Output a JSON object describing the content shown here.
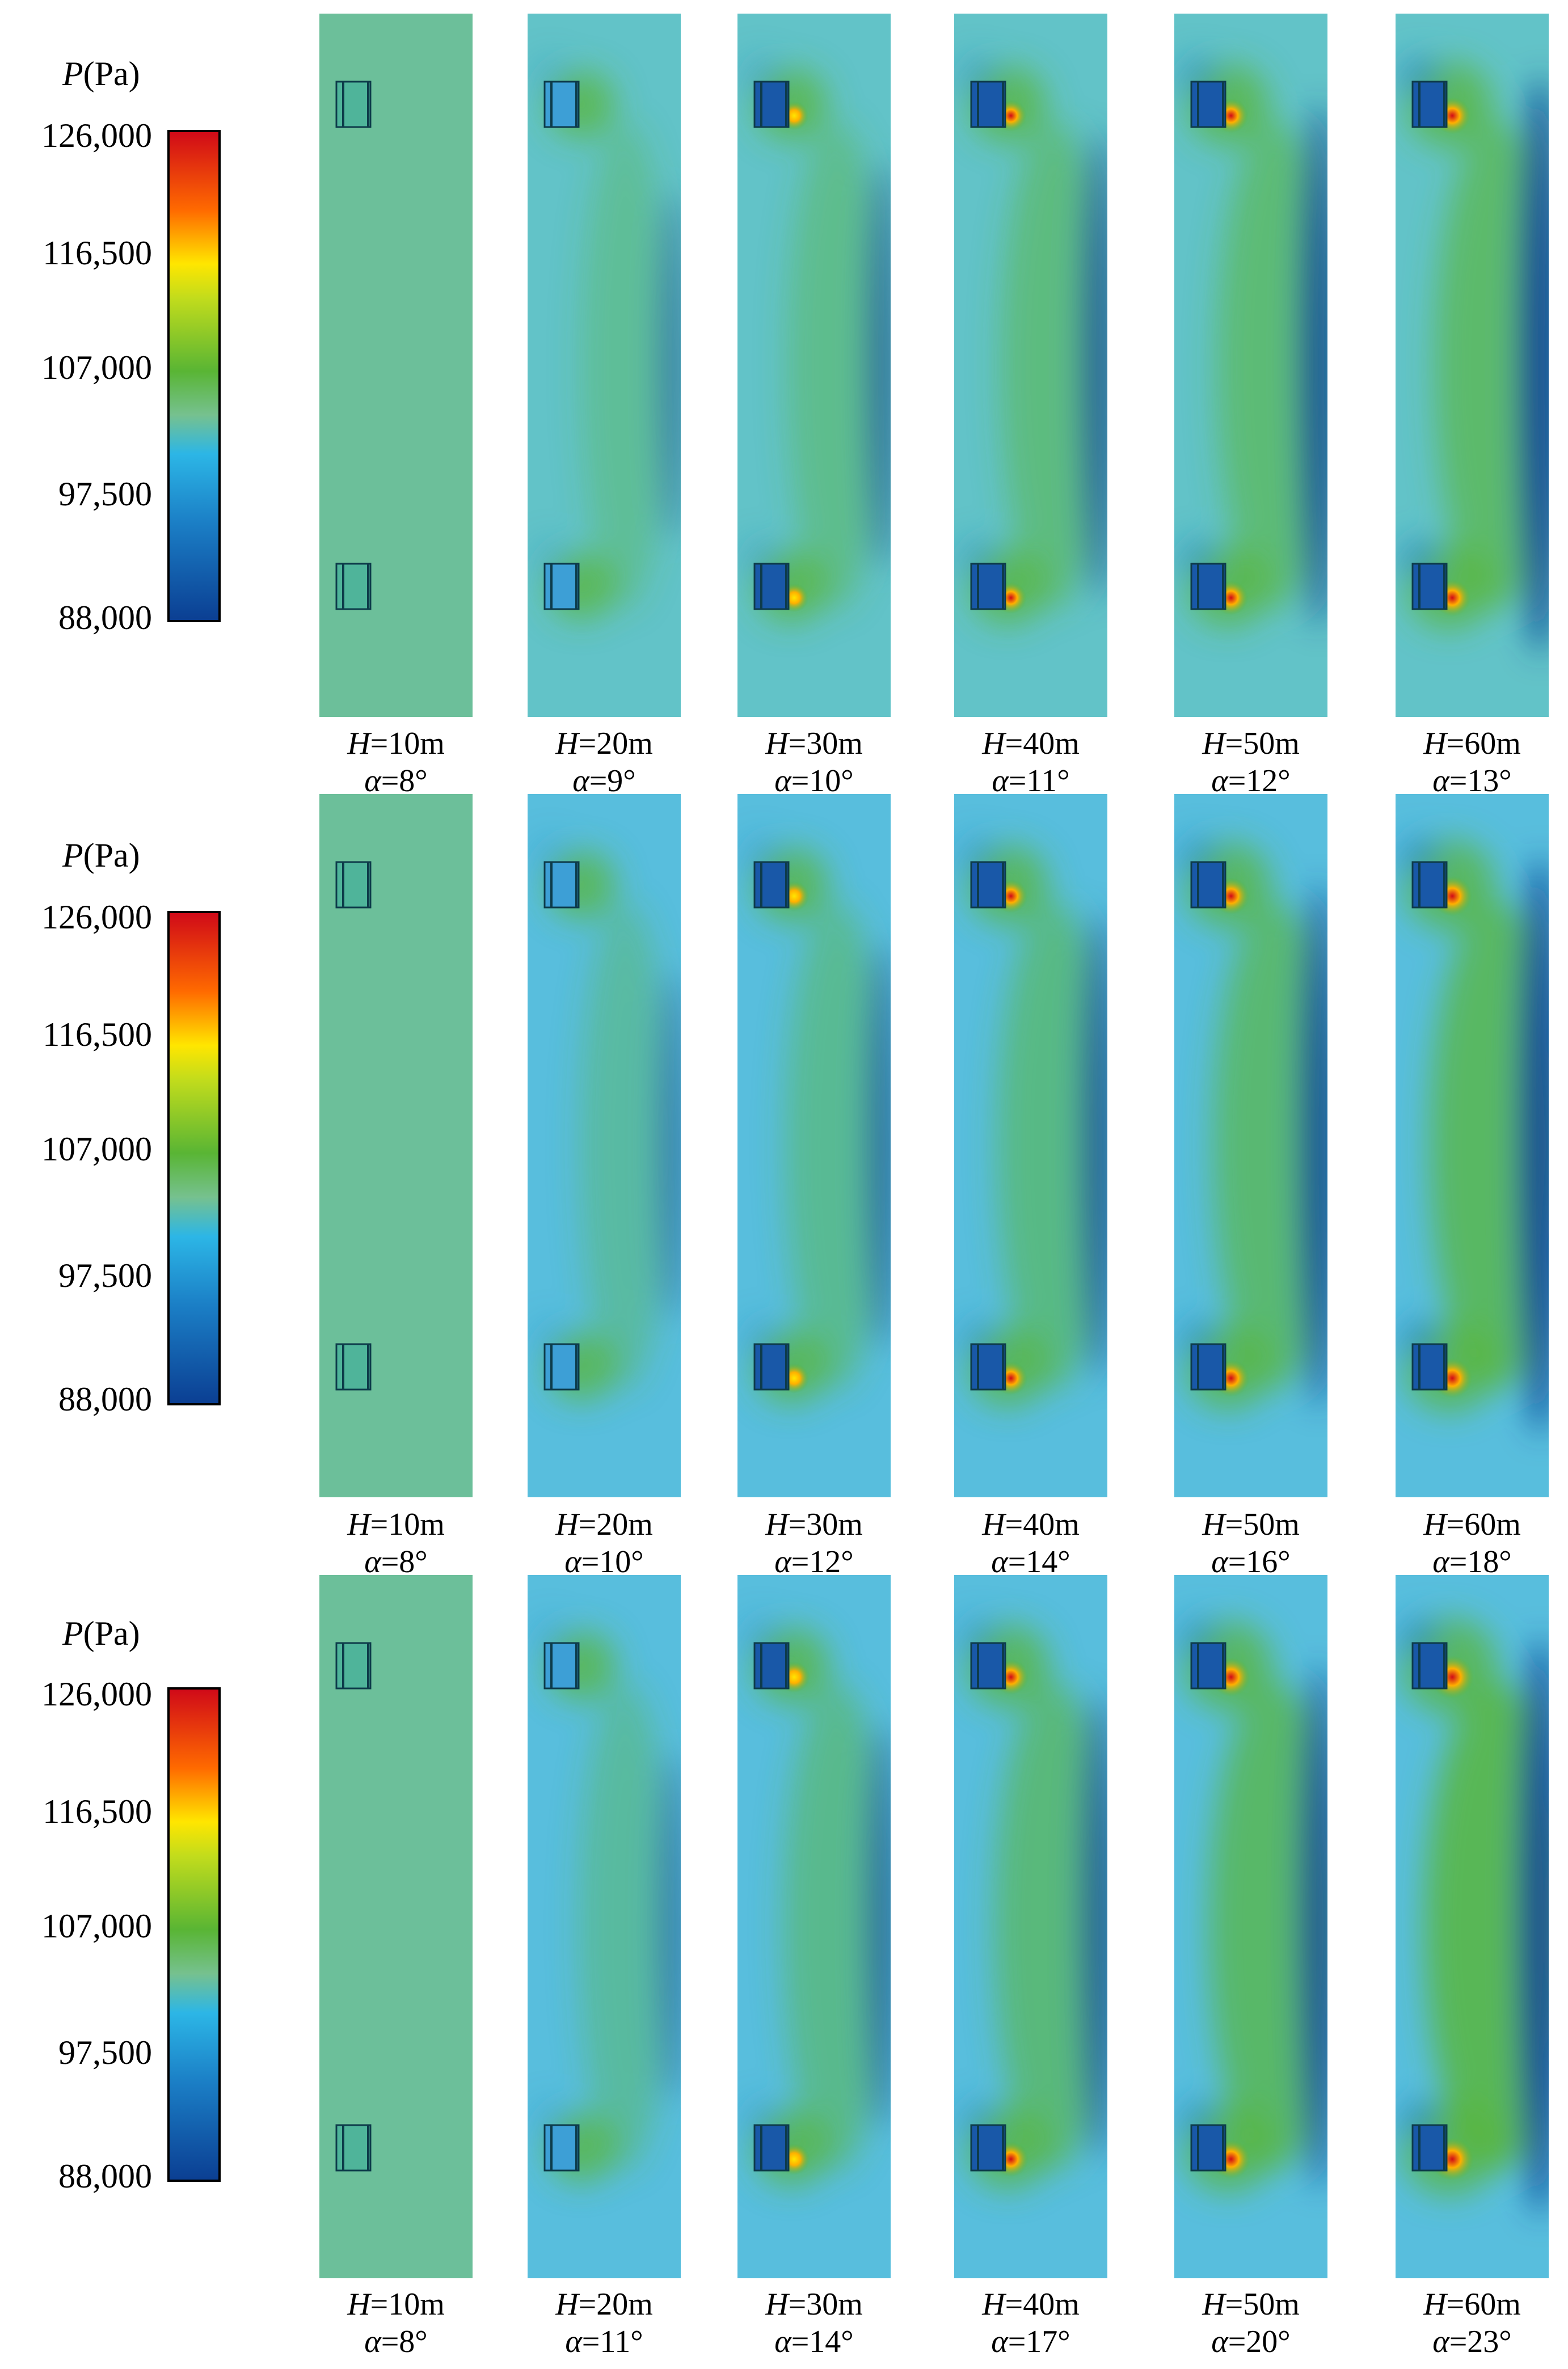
{
  "legend": {
    "title_symbol": "P",
    "title_unit": "(Pa)",
    "ticks": [
      "126,000",
      "116,500",
      "107,000",
      "97,500",
      "88,000"
    ],
    "colormap": [
      "#d00a18",
      "#ff6a00",
      "#ffe600",
      "#c2dc1c",
      "#59b534",
      "#76c18f",
      "#2cb6e6",
      "#1b7fc6",
      "#0b3f93"
    ]
  },
  "rows": [
    {
      "panels": [
        {
          "h_symbol": "H",
          "h_value": "=10m",
          "a_symbol": "α",
          "a_value": "=8°"
        },
        {
          "h_symbol": "H",
          "h_value": "=20m",
          "a_symbol": "α",
          "a_value": "=9°"
        },
        {
          "h_symbol": "H",
          "h_value": "=30m",
          "a_symbol": "α",
          "a_value": "=10°"
        },
        {
          "h_symbol": "H",
          "h_value": "=40m",
          "a_symbol": "α",
          "a_value": "=11°"
        },
        {
          "h_symbol": "H",
          "h_value": "=50m",
          "a_symbol": "α",
          "a_value": "=12°"
        },
        {
          "h_symbol": "H",
          "h_value": "=60m",
          "a_symbol": "α",
          "a_value": "=13°"
        }
      ]
    },
    {
      "panels": [
        {
          "h_symbol": "H",
          "h_value": "=10m",
          "a_symbol": "α",
          "a_value": "=8°"
        },
        {
          "h_symbol": "H",
          "h_value": "=20m",
          "a_symbol": "α",
          "a_value": "=10°"
        },
        {
          "h_symbol": "H",
          "h_value": "=30m",
          "a_symbol": "α",
          "a_value": "=12°"
        },
        {
          "h_symbol": "H",
          "h_value": "=40m",
          "a_symbol": "α",
          "a_value": "=14°"
        },
        {
          "h_symbol": "H",
          "h_value": "=50m",
          "a_symbol": "α",
          "a_value": "=16°"
        },
        {
          "h_symbol": "H",
          "h_value": "=60m",
          "a_symbol": "α",
          "a_value": "=18°"
        }
      ]
    },
    {
      "panels": [
        {
          "h_symbol": "H",
          "h_value": "=10m",
          "a_symbol": "α",
          "a_value": "=8°"
        },
        {
          "h_symbol": "H",
          "h_value": "=20m",
          "a_symbol": "α",
          "a_value": "=11°"
        },
        {
          "h_symbol": "H",
          "h_value": "=30m",
          "a_symbol": "α",
          "a_value": "=14°"
        },
        {
          "h_symbol": "H",
          "h_value": "=40m",
          "a_symbol": "α",
          "a_value": "=17°"
        },
        {
          "h_symbol": "H",
          "h_value": "=50m",
          "a_symbol": "α",
          "a_value": "=20°"
        },
        {
          "h_symbol": "H",
          "h_value": "=60m",
          "a_symbol": "α",
          "a_value": "=23°"
        }
      ]
    }
  ]
}
